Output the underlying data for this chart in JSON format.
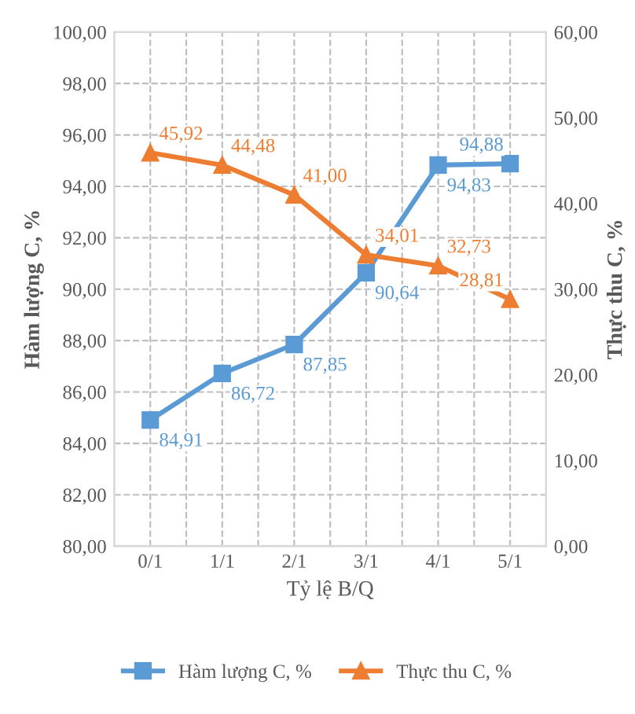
{
  "chart_data": {
    "type": "line",
    "xlabel": "Tỷ lệ B/Q",
    "ylabel": "Hàm lượng C, %",
    "y2label": "Thực thu C, %",
    "categories": [
      "0/1",
      "1/1",
      "2/1",
      "3/1",
      "4/1",
      "5/1"
    ],
    "series": [
      {
        "name": "Hàm lượng C, %",
        "color": "#5b9bd5",
        "marker": "square",
        "values": [
          84.91,
          86.72,
          87.85,
          90.64,
          94.83,
          94.88
        ],
        "value_labels": [
          "84,91",
          "86,72",
          "87,85",
          "90,64",
          "94,83",
          "94,88"
        ]
      },
      {
        "name": "Thực thu C, %",
        "color": "#ed7d31",
        "marker": "triangle",
        "axis": "y2",
        "values": [
          45.92,
          44.48,
          41.0,
          34.01,
          32.73,
          28.81
        ],
        "value_labels": [
          "45,92",
          "44,48",
          "41,00",
          "34,01",
          "32,73",
          "28,81"
        ]
      }
    ],
    "ylim": [
      80,
      100
    ],
    "yticks": [
      {
        "value": 80,
        "label": "80,00"
      },
      {
        "value": 82,
        "label": "82,00"
      },
      {
        "value": 84,
        "label": "84,00"
      },
      {
        "value": 86,
        "label": "86,00"
      },
      {
        "value": 88,
        "label": "88,00"
      },
      {
        "value": 90,
        "label": "90,00"
      },
      {
        "value": 92,
        "label": "92,00"
      },
      {
        "value": 94,
        "label": "94,00"
      },
      {
        "value": 96,
        "label": "96,00"
      },
      {
        "value": 98,
        "label": "98,00"
      },
      {
        "value": 100,
        "label": "100,00"
      }
    ],
    "y2lim": [
      0,
      60
    ],
    "y2ticks": [
      {
        "value": 0,
        "label": "0,00"
      },
      {
        "value": 10,
        "label": "10,00"
      },
      {
        "value": 20,
        "label": "20,00"
      },
      {
        "value": 30,
        "label": "30,00"
      },
      {
        "value": 40,
        "label": "40,00"
      },
      {
        "value": 50,
        "label": "50,00"
      },
      {
        "value": 60,
        "label": "60,00"
      }
    ],
    "grid": true,
    "legend": "bottom",
    "line_style": "solid"
  }
}
